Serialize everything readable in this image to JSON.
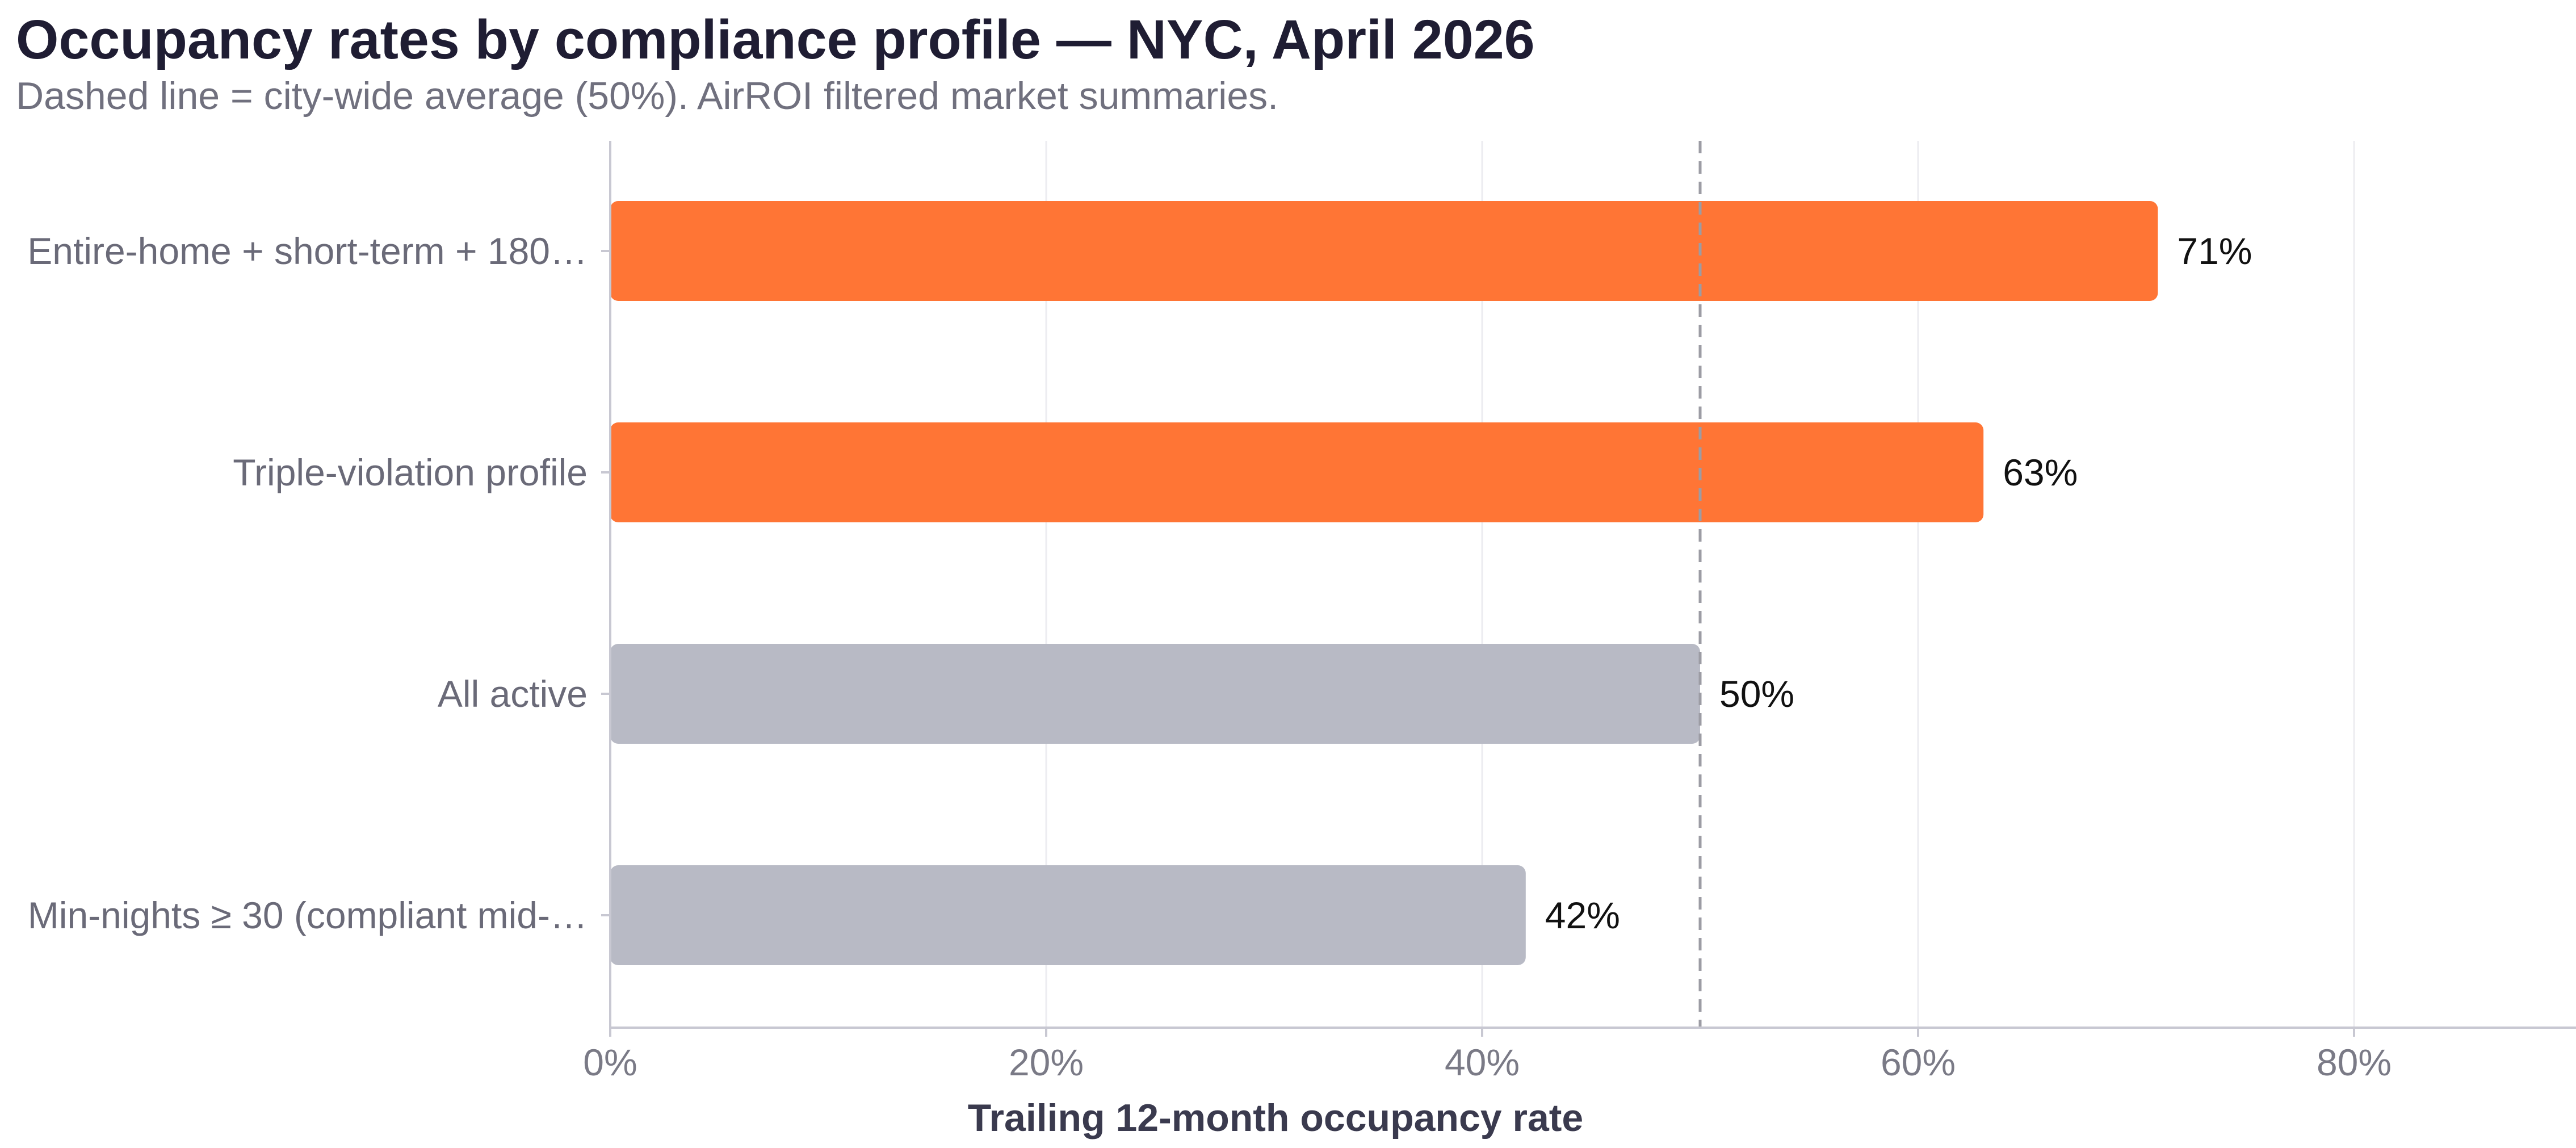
{
  "chart_data": {
    "type": "bar",
    "orientation": "horizontal",
    "title": "Occupancy rates by compliance profile — NYC, April 2026",
    "subtitle": "Dashed line = city-wide average (50%). AirROI filtered market summaries.",
    "xlabel": "Trailing 12-month occupancy rate",
    "ylabel": "",
    "xlim": [
      0,
      90
    ],
    "x_ticks": [
      {
        "value": 0,
        "label": "0%"
      },
      {
        "value": 20,
        "label": "20%"
      },
      {
        "value": 40,
        "label": "40%"
      },
      {
        "value": 60,
        "label": "60%"
      },
      {
        "value": 80,
        "label": "80%"
      }
    ],
    "grid": "vertical",
    "reference_line": {
      "value": 50,
      "style": "dashed",
      "color": "#9c9ca4"
    },
    "bars": [
      {
        "category": "Entire-home + short-term + 180…",
        "value": 71,
        "label": "71%",
        "color": "#ff7535"
      },
      {
        "category": "Triple-violation profile",
        "value": 63,
        "label": "63%",
        "color": "#ff7535"
      },
      {
        "category": "All active",
        "value": 50,
        "label": "50%",
        "color": "#b8bac5"
      },
      {
        "category": "Min-nights ≥ 30 (compliant mid-…",
        "value": 42,
        "label": "42%",
        "color": "#b8bac5"
      }
    ],
    "colors": {
      "highlight": "#ff7535",
      "baseline": "#b8bac5",
      "grid": "#ececf0",
      "axis": "#c8c8d2"
    }
  }
}
